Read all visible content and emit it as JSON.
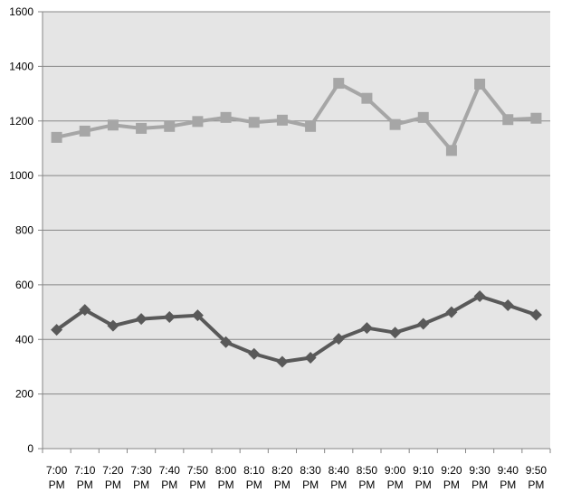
{
  "chart_data": {
    "type": "line",
    "title": "",
    "xlabel": "",
    "ylabel": "",
    "categories": [
      [
        "7:00",
        "PM"
      ],
      [
        "7:10",
        "PM"
      ],
      [
        "7:20",
        "PM"
      ],
      [
        "7:30",
        "PM"
      ],
      [
        "7:40",
        "PM"
      ],
      [
        "7:50",
        "PM"
      ],
      [
        "8:00",
        "PM"
      ],
      [
        "8:10",
        "PM"
      ],
      [
        "8:20",
        "PM"
      ],
      [
        "8:30",
        "PM"
      ],
      [
        "8:40",
        "PM"
      ],
      [
        "8:50",
        "PM"
      ],
      [
        "9:00",
        "PM"
      ],
      [
        "9:10",
        "PM"
      ],
      [
        "9:20",
        "PM"
      ],
      [
        "9:30",
        "PM"
      ],
      [
        "9:40",
        "PM"
      ],
      [
        "9:50",
        "PM"
      ]
    ],
    "ylim": [
      0,
      1600
    ],
    "yticks": [
      0,
      200,
      400,
      600,
      800,
      1000,
      1200,
      1400,
      1600
    ],
    "grid": true,
    "legend": "none",
    "series": [
      {
        "marker": "square",
        "color": "#a6a6a6",
        "values": [
          1140,
          1163,
          1185,
          1173,
          1180,
          1198,
          1213,
          1195,
          1203,
          1180,
          1338,
          1283,
          1187,
          1213,
          1092,
          1335,
          1205,
          1210
        ]
      },
      {
        "marker": "diamond",
        "color": "#595959",
        "values": [
          435,
          508,
          450,
          475,
          482,
          488,
          390,
          347,
          318,
          333,
          402,
          442,
          425,
          457,
          500,
          558,
          525,
          490
        ]
      }
    ],
    "colors": {
      "plot_background": "#e5e5e5",
      "gridline": "#878787",
      "axis": "#868686",
      "text": "#000000"
    }
  }
}
